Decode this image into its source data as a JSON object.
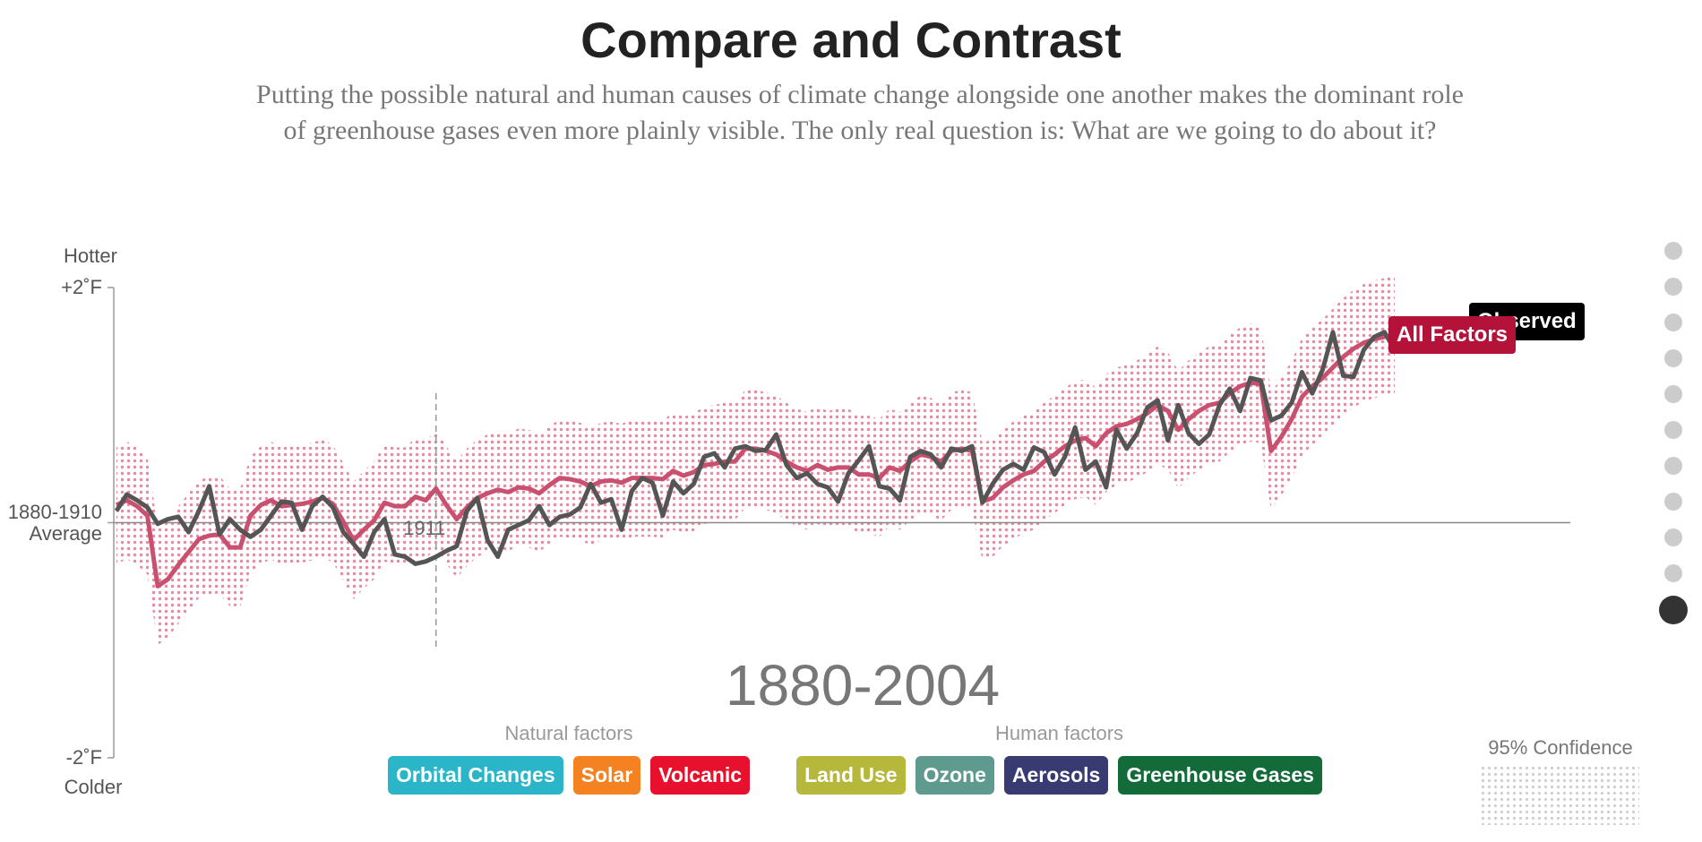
{
  "chart_data": {
    "type": "line",
    "title": "Compare and Contrast",
    "subtitle": "Putting the possible natural and human causes of climate change alongside one another makes the dominant role of greenhouse gases even more plainly visible. The only real question is: What are we going to do about it?",
    "y_top_label": "Hotter",
    "y_bottom_label": "Colder",
    "period_label": "1880-2004",
    "ylim": [
      -2,
      2
    ],
    "yticks": [
      {
        "value": 2,
        "label": "+2˚F"
      },
      {
        "value": 0,
        "label": "1880-1910 Average"
      },
      {
        "value": -2,
        "label": "-2˚F"
      }
    ],
    "xlim": [
      1880,
      2004
    ],
    "marker": {
      "x": 1911
    },
    "confidence": {
      "label": "95% Confidence",
      "halfwidth": 0.5,
      "color": "#e98aa3"
    },
    "x": [
      1880,
      1881,
      1882,
      1883,
      1884,
      1885,
      1886,
      1887,
      1888,
      1889,
      1890,
      1891,
      1892,
      1893,
      1894,
      1895,
      1896,
      1897,
      1898,
      1899,
      1900,
      1901,
      1902,
      1903,
      1904,
      1905,
      1906,
      1907,
      1908,
      1909,
      1910,
      1911,
      1912,
      1913,
      1914,
      1915,
      1916,
      1917,
      1918,
      1919,
      1920,
      1921,
      1922,
      1923,
      1924,
      1925,
      1926,
      1927,
      1928,
      1929,
      1930,
      1931,
      1932,
      1933,
      1934,
      1935,
      1936,
      1937,
      1938,
      1939,
      1940,
      1941,
      1942,
      1943,
      1944,
      1945,
      1946,
      1947,
      1948,
      1949,
      1950,
      1951,
      1952,
      1953,
      1954,
      1955,
      1956,
      1957,
      1958,
      1959,
      1960,
      1961,
      1962,
      1963,
      1964,
      1965,
      1966,
      1967,
      1968,
      1969,
      1970,
      1971,
      1972,
      1973,
      1974,
      1975,
      1976,
      1977,
      1978,
      1979,
      1980,
      1981,
      1982,
      1983,
      1984,
      1985,
      1986,
      1987,
      1988,
      1989,
      1990,
      1991,
      1992,
      1993,
      1994,
      1995,
      1996,
      1997,
      1998,
      1999,
      2000,
      2001,
      2002,
      2003,
      2004
    ],
    "series": [
      {
        "name": "Observed",
        "color": "#555555",
        "tag_color": "#000000",
        "values": [
          0.1,
          0.24,
          0.19,
          0.13,
          -0.01,
          0.03,
          0.05,
          -0.08,
          0.1,
          0.31,
          -0.1,
          0.03,
          -0.06,
          -0.12,
          -0.06,
          0.06,
          0.18,
          0.17,
          -0.06,
          0.14,
          0.22,
          0.13,
          -0.08,
          -0.18,
          -0.29,
          -0.08,
          0.03,
          -0.27,
          -0.29,
          -0.35,
          -0.33,
          -0.29,
          -0.24,
          -0.2,
          0.1,
          0.21,
          -0.15,
          -0.29,
          -0.06,
          -0.02,
          0.02,
          0.14,
          -0.02,
          0.05,
          0.07,
          0.13,
          0.33,
          0.17,
          0.2,
          -0.06,
          0.27,
          0.38,
          0.34,
          0.06,
          0.35,
          0.25,
          0.33,
          0.56,
          0.59,
          0.47,
          0.63,
          0.65,
          0.61,
          0.62,
          0.75,
          0.49,
          0.38,
          0.42,
          0.33,
          0.3,
          0.18,
          0.42,
          0.53,
          0.65,
          0.31,
          0.29,
          0.19,
          0.56,
          0.61,
          0.58,
          0.47,
          0.63,
          0.61,
          0.65,
          0.17,
          0.33,
          0.45,
          0.5,
          0.45,
          0.64,
          0.6,
          0.41,
          0.56,
          0.81,
          0.45,
          0.52,
          0.3,
          0.79,
          0.63,
          0.76,
          0.98,
          1.04,
          0.7,
          1.0,
          0.76,
          0.67,
          0.75,
          1.0,
          1.14,
          0.95,
          1.23,
          1.21,
          0.87,
          0.91,
          1.02,
          1.28,
          1.1,
          1.3,
          1.62,
          1.25,
          1.24,
          1.47,
          1.58,
          1.62,
          1.47
        ]
      },
      {
        "name": "All Factors",
        "color": "#c9506e",
        "tag_color": "#b5123a",
        "band": true,
        "values": [
          0.15,
          0.19,
          0.14,
          0.06,
          -0.54,
          -0.48,
          -0.36,
          -0.25,
          -0.14,
          -0.11,
          -0.1,
          -0.21,
          -0.21,
          0.06,
          0.15,
          0.19,
          0.14,
          0.15,
          0.16,
          0.18,
          0.21,
          0.16,
          0.01,
          -0.15,
          -0.06,
          0.02,
          0.17,
          0.14,
          0.14,
          0.22,
          0.19,
          0.29,
          0.15,
          0.03,
          0.13,
          0.21,
          0.25,
          0.28,
          0.26,
          0.3,
          0.29,
          0.25,
          0.32,
          0.38,
          0.37,
          0.35,
          0.31,
          0.35,
          0.36,
          0.34,
          0.38,
          0.38,
          0.38,
          0.37,
          0.44,
          0.4,
          0.43,
          0.49,
          0.5,
          0.52,
          0.52,
          0.63,
          0.63,
          0.61,
          0.58,
          0.52,
          0.47,
          0.44,
          0.49,
          0.45,
          0.47,
          0.47,
          0.41,
          0.41,
          0.38,
          0.47,
          0.44,
          0.52,
          0.58,
          0.56,
          0.52,
          0.61,
          0.63,
          0.61,
          0.18,
          0.21,
          0.3,
          0.36,
          0.41,
          0.44,
          0.52,
          0.58,
          0.65,
          0.7,
          0.72,
          0.65,
          0.76,
          0.82,
          0.84,
          0.88,
          0.93,
          1.0,
          0.95,
          0.79,
          0.88,
          0.95,
          1.0,
          1.02,
          1.1,
          1.16,
          1.19,
          1.18,
          0.61,
          0.73,
          0.88,
          1.07,
          1.16,
          1.23,
          1.32,
          1.41,
          1.48,
          1.53,
          1.56,
          1.58,
          1.6
        ]
      }
    ],
    "factor_groups": [
      {
        "label": "Natural factors",
        "items": [
          {
            "name": "Orbital Changes",
            "color": "#2bb5c8"
          },
          {
            "name": "Solar",
            "color": "#f58220"
          },
          {
            "name": "Volcanic",
            "color": "#e8112d"
          }
        ]
      },
      {
        "label": "Human factors",
        "items": [
          {
            "name": "Land Use",
            "color": "#b5b83a"
          },
          {
            "name": "Ozone",
            "color": "#5f9a8f"
          },
          {
            "name": "Aerosols",
            "color": "#383a72"
          },
          {
            "name": "Greenhouse Gases",
            "color": "#146b3a"
          }
        ]
      }
    ]
  }
}
